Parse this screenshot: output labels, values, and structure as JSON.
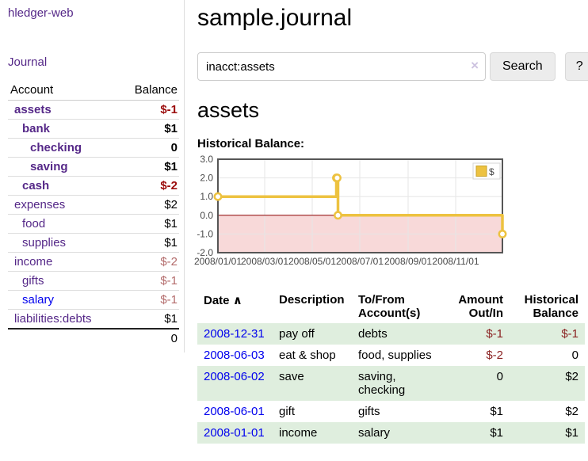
{
  "colors": {
    "link_purple": "#552888",
    "link_blue": "#0000EE",
    "negative_strong": "#9B0C0C",
    "negative": "#8B2323",
    "negative_muted": "#B36B6B",
    "row_green": "#dfeede",
    "chart_line": "#EDC240",
    "chart_negative_region": "#F8D9D9",
    "chart_zero_line": "#8B0000"
  },
  "app": {
    "brand": "hledger-web",
    "nav_journal": "Journal"
  },
  "sidebar": {
    "accounts_header": {
      "account": "Account",
      "balance": "Balance"
    },
    "accounts": [
      {
        "name": "assets",
        "balance": "$-1",
        "indent": 1,
        "bold": true,
        "neg": "strong"
      },
      {
        "name": "bank",
        "balance": "$1",
        "indent": 2,
        "bold": true,
        "neg": ""
      },
      {
        "name": "checking",
        "balance": "0",
        "indent": 3,
        "bold": true,
        "neg": ""
      },
      {
        "name": "saving",
        "balance": "$1",
        "indent": 3,
        "bold": true,
        "neg": ""
      },
      {
        "name": "cash",
        "balance": "$-2",
        "indent": 2,
        "bold": true,
        "neg": "strong"
      },
      {
        "name": "expenses",
        "balance": "$2",
        "indent": 1,
        "bold": false,
        "neg": ""
      },
      {
        "name": "food",
        "balance": "$1",
        "indent": 2,
        "bold": false,
        "neg": ""
      },
      {
        "name": "supplies",
        "balance": "$1",
        "indent": 2,
        "bold": false,
        "neg": ""
      },
      {
        "name": "income",
        "balance": "$-2",
        "indent": 1,
        "bold": false,
        "neg": "muted"
      },
      {
        "name": "gifts",
        "balance": "$-1",
        "indent": 2,
        "bold": false,
        "neg": "muted"
      },
      {
        "name": "salary",
        "balance": "$-1",
        "indent": 2,
        "bold": false,
        "neg": "muted",
        "link": "blue"
      },
      {
        "name": "liabilities:debts",
        "balance": "$1",
        "indent": 1,
        "bold": false,
        "neg": ""
      }
    ],
    "total": "0"
  },
  "header": {
    "title": "sample.journal"
  },
  "search": {
    "value": "inacct:assets",
    "clear_icon": "×",
    "button_label": "Search",
    "help_label": "?"
  },
  "account_page": {
    "heading": "assets",
    "section_label": "Historical Balance:"
  },
  "chart_data": {
    "type": "line",
    "title": "Historical Balance",
    "step": true,
    "series": [
      {
        "name": "$",
        "color": "#EDC240",
        "points": [
          [
            "2008-01-01",
            1
          ],
          [
            "2008-06-01",
            2
          ],
          [
            "2008-06-02",
            2
          ],
          [
            "2008-06-03",
            0
          ],
          [
            "2008-12-31",
            -1
          ]
        ]
      }
    ],
    "x_range": [
      "2008-01-01",
      "2008-12-31"
    ],
    "x_ticks": [
      "2008/01/01",
      "2008/03/01",
      "2008/05/01",
      "2008/07/01",
      "2008/09/01",
      "2008/11/01"
    ],
    "y_ticks": [
      "3.0",
      "2.0",
      "1.0",
      "0.0",
      "-1.0",
      "-2.0"
    ],
    "ylim": [
      -2,
      3
    ],
    "grid": true,
    "legend": {
      "label": "$",
      "position": "top-right"
    },
    "negative_region_color": "#F8D9D9",
    "zero_line_color": "#8B0000"
  },
  "register": {
    "columns": [
      "Date",
      "Description",
      "To/From Account(s)",
      "Amount Out/In",
      "Historical Balance"
    ],
    "sort_icon": "∧",
    "rows": [
      {
        "date": "2008-12-31",
        "description": "pay off",
        "accounts": "debts",
        "amount": "$-1",
        "amount_neg": true,
        "balance": "$-1",
        "balance_neg": true
      },
      {
        "date": "2008-06-03",
        "description": "eat & shop",
        "accounts": "food, supplies",
        "amount": "$-2",
        "amount_neg": true,
        "balance": "0",
        "balance_neg": false
      },
      {
        "date": "2008-06-02",
        "description": "save",
        "accounts": "saving, checking",
        "amount": "0",
        "amount_neg": false,
        "balance": "$2",
        "balance_neg": false
      },
      {
        "date": "2008-06-01",
        "description": "gift",
        "accounts": "gifts",
        "amount": "$1",
        "amount_neg": false,
        "balance": "$2",
        "balance_neg": false
      },
      {
        "date": "2008-01-01",
        "description": "income",
        "accounts": "salary",
        "amount": "$1",
        "amount_neg": false,
        "balance": "$1",
        "balance_neg": false
      }
    ]
  }
}
